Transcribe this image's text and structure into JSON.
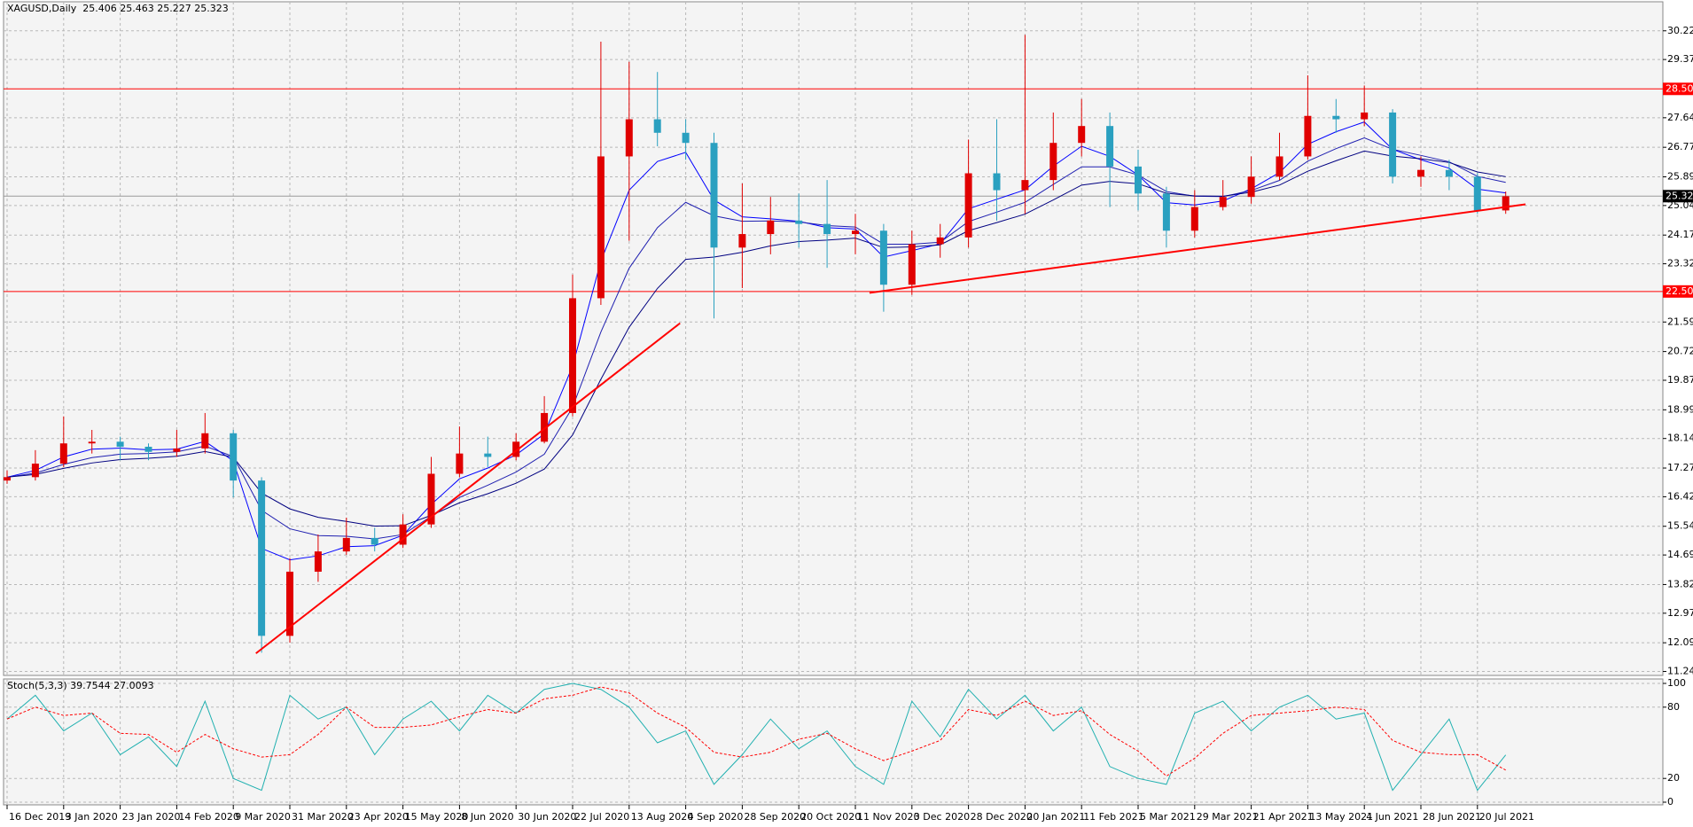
{
  "chart_data": [
    {
      "type": "candlestick",
      "title": "XAGUSD,Daily",
      "header_values": [
        25.406,
        25.463,
        25.227,
        25.323
      ],
      "categories": [
        "16 Dec 2019",
        null,
        "3 Jan 2020",
        null,
        "23 Jan 2020",
        null,
        "14 Feb 2020",
        null,
        "9 Mar 2020",
        null,
        "31 Mar 2020",
        null,
        "23 Apr 2020",
        null,
        "15 May 2020",
        null,
        "8 Jun 2020",
        null,
        "30 Jun 2020",
        null,
        "22 Jul 2020",
        null,
        "13 Aug 2020",
        null,
        "4 Sep 2020",
        null,
        "28 Sep 2020",
        null,
        "20 Oct 2020",
        null,
        "11 Nov 2020",
        null,
        "3 Dec 2020",
        null,
        "28 Dec 2020",
        null,
        "20 Jan 2021",
        null,
        "11 Feb 2021",
        null,
        "5 Mar 2021",
        null,
        "29 Mar 2021",
        null,
        "21 Apr 2021",
        null,
        "13 May 2021",
        null,
        "4 Jun 2021",
        null,
        "28 Jun 2021",
        null,
        "20 Jul 2021",
        null
      ],
      "open": [
        16.9,
        17.0,
        17.4,
        18.0,
        18.05,
        17.9,
        17.75,
        17.85,
        18.3,
        16.9,
        12.3,
        14.2,
        14.8,
        15.2,
        15.0,
        15.6,
        17.1,
        17.7,
        17.6,
        18.05,
        18.9,
        22.3,
        26.5,
        27.6,
        27.2,
        26.9,
        23.8,
        24.2,
        24.6,
        24.5,
        24.2,
        24.3,
        22.7,
        23.9,
        24.1,
        26.0,
        25.5,
        25.8,
        26.9,
        27.4,
        26.2,
        25.4,
        24.3,
        25.0,
        25.3,
        25.9,
        26.5,
        27.7,
        27.6,
        27.8,
        25.9,
        26.1,
        25.9,
        24.9
      ],
      "high": [
        17.2,
        17.8,
        18.8,
        18.4,
        18.2,
        18.0,
        18.4,
        18.9,
        18.4,
        17.0,
        14.6,
        15.3,
        15.8,
        15.5,
        15.9,
        17.6,
        18.5,
        18.2,
        18.3,
        19.4,
        23.0,
        29.9,
        29.3,
        29.0,
        27.6,
        27.2,
        25.7,
        25.3,
        25.4,
        25.8,
        24.8,
        24.5,
        24.3,
        24.5,
        27.0,
        27.6,
        30.1,
        27.8,
        28.2,
        27.8,
        26.7,
        25.6,
        25.5,
        25.8,
        26.5,
        27.2,
        28.9,
        28.2,
        28.6,
        27.9,
        26.5,
        26.4,
        26.0,
        25.46
      ],
      "low": [
        16.8,
        16.9,
        17.3,
        17.7,
        17.5,
        17.5,
        17.6,
        17.7,
        16.4,
        11.8,
        12.1,
        13.9,
        14.7,
        14.8,
        14.9,
        15.5,
        17.0,
        17.3,
        17.5,
        18.0,
        18.8,
        22.1,
        24.0,
        26.8,
        26.4,
        21.7,
        22.6,
        23.6,
        23.8,
        23.2,
        23.6,
        21.9,
        22.4,
        23.5,
        23.8,
        24.6,
        24.8,
        25.5,
        26.5,
        25.0,
        24.9,
        23.8,
        24.1,
        24.9,
        25.1,
        25.8,
        26.4,
        27.2,
        27.4,
        25.7,
        25.6,
        25.5,
        24.8,
        24.8
      ],
      "close": [
        17.0,
        17.4,
        18.0,
        18.05,
        17.9,
        17.75,
        17.85,
        18.3,
        16.9,
        12.3,
        14.2,
        14.8,
        15.2,
        15.0,
        15.6,
        17.1,
        17.7,
        17.6,
        18.05,
        18.9,
        22.3,
        26.5,
        27.6,
        27.2,
        26.9,
        23.8,
        24.2,
        24.6,
        24.5,
        24.2,
        24.3,
        22.7,
        23.9,
        24.1,
        26.0,
        25.5,
        25.8,
        26.9,
        27.4,
        26.2,
        25.4,
        24.3,
        25.0,
        25.3,
        25.9,
        26.5,
        27.7,
        27.6,
        27.8,
        25.9,
        26.1,
        25.9,
        24.9,
        25.32
      ],
      "up_color": "#e00000",
      "down_color": "#2aa0c0",
      "ma_series": [
        {
          "color": "#0000ff",
          "values": [
            17.0,
            17.2,
            17.6,
            17.83,
            17.86,
            17.81,
            17.83,
            18.06,
            17.48,
            14.89,
            14.55,
            14.67,
            14.94,
            14.97,
            15.28,
            16.19,
            16.95,
            17.27,
            17.66,
            18.28,
            20.29,
            23.4,
            25.5,
            26.35,
            26.62,
            25.21,
            24.71,
            24.65,
            24.58,
            24.39,
            24.35,
            23.52,
            23.71,
            23.91,
            24.95,
            25.23,
            25.51,
            26.21,
            26.8,
            26.5,
            25.95,
            25.13,
            25.06,
            25.18,
            25.54,
            26.02,
            26.86,
            27.23,
            27.52,
            26.71,
            26.4,
            26.15,
            25.53,
            25.42
          ]
        },
        {
          "color": "#2020b0",
          "values": [
            17.0,
            17.12,
            17.38,
            17.58,
            17.68,
            17.7,
            17.75,
            17.92,
            17.61,
            16.02,
            15.47,
            15.27,
            15.25,
            15.17,
            15.3,
            15.84,
            16.4,
            16.76,
            17.15,
            17.68,
            19.07,
            21.3,
            23.19,
            24.39,
            25.14,
            24.74,
            24.58,
            24.59,
            24.56,
            24.45,
            24.41,
            23.9,
            23.9,
            23.96,
            24.57,
            24.85,
            25.14,
            25.67,
            26.19,
            26.19,
            25.95,
            25.46,
            25.32,
            25.31,
            25.49,
            25.79,
            26.36,
            26.73,
            27.05,
            26.71,
            26.53,
            26.34,
            25.91,
            25.73
          ]
        },
        {
          "color": "#000080",
          "values": [
            17.0,
            17.08,
            17.26,
            17.42,
            17.52,
            17.56,
            17.62,
            17.76,
            17.59,
            16.53,
            16.06,
            15.81,
            15.69,
            15.55,
            15.56,
            15.87,
            16.24,
            16.51,
            16.82,
            17.24,
            18.25,
            19.9,
            21.44,
            22.59,
            23.45,
            23.52,
            23.66,
            23.85,
            23.98,
            24.02,
            24.08,
            23.8,
            23.82,
            23.88,
            24.3,
            24.54,
            24.79,
            25.21,
            25.65,
            25.76,
            25.69,
            25.41,
            25.33,
            25.32,
            25.44,
            25.65,
            26.06,
            26.37,
            26.66,
            26.51,
            26.43,
            26.32,
            26.04,
            25.9
          ]
        }
      ],
      "levels": [
        {
          "value": 28.5,
          "label": "28.500",
          "color": "#ff0000"
        },
        {
          "value": 22.5,
          "label": "22.500",
          "color": "#ff0000"
        }
      ],
      "current_price": 25.323,
      "trendlines": [
        {
          "x": [
            8.8,
            23.8
          ],
          "y": [
            11.78,
            21.56
          ],
          "color": "#ff0000"
        },
        {
          "x": [
            30.5,
            53.7
          ],
          "y": [
            22.46,
            25.08
          ],
          "color": "#ff0000"
        }
      ],
      "ylim": [
        11.18,
        31.08
      ],
      "yticks": [
        {
          "value": 30.22,
          "label": "30.220"
        },
        {
          "value": 29.37,
          "label": "29.370"
        },
        27.645,
        {
          "value": 26.77,
          "label": "26.770"
        },
        25.895,
        25.045,
        {
          "value": 24.17,
          "label": "24.170"
        },
        {
          "value": 23.32,
          "label": "23.320"
        },
        21.595,
        {
          "value": 20.72,
          "label": "20.720"
        },
        {
          "value": 19.87,
          "label": "19.870"
        },
        18.995,
        18.145,
        {
          "value": 17.27,
          "label": "17.270"
        },
        {
          "value": 16.42,
          "label": "16.420"
        },
        15.545,
        14.695,
        {
          "value": 13.82,
          "label": "13.820"
        },
        {
          "value": 12.97,
          "label": "12.970"
        },
        12.095,
        11.245
      ],
      "grid": true
    },
    {
      "type": "line",
      "title": "Stoch(5,3,3)",
      "series": [
        {
          "color": "#20b0b0",
          "dashed": false,
          "values": [
            70,
            90,
            60,
            75,
            40,
            55,
            30,
            85,
            20,
            10,
            90,
            70,
            80,
            40,
            70,
            85,
            60,
            90,
            75,
            95,
            100,
            95,
            80,
            50,
            60,
            15,
            40,
            70,
            45,
            60,
            30,
            15,
            85,
            55,
            95,
            70,
            90,
            60,
            80,
            30,
            20,
            15,
            75,
            85,
            60,
            80,
            90,
            70,
            75,
            10,
            40,
            70,
            10,
            39.7544
          ]
        },
        {
          "color": "#ff0000",
          "dashed": true,
          "values": [
            70,
            80,
            73,
            75,
            58,
            57,
            42,
            57,
            45,
            38,
            40,
            57,
            80,
            63,
            63,
            65,
            72,
            78,
            75,
            87,
            90,
            97,
            92,
            75,
            63,
            42,
            38,
            42,
            53,
            58,
            45,
            35,
            43,
            52,
            78,
            73,
            85,
            73,
            77,
            57,
            43,
            22,
            37,
            58,
            73,
            75,
            77,
            80,
            78,
            52,
            42,
            40,
            40,
            27.0093
          ]
        }
      ],
      "ylim": [
        0,
        100
      ],
      "yticks": [
        0,
        20,
        80,
        100
      ],
      "grid": true
    }
  ]
}
